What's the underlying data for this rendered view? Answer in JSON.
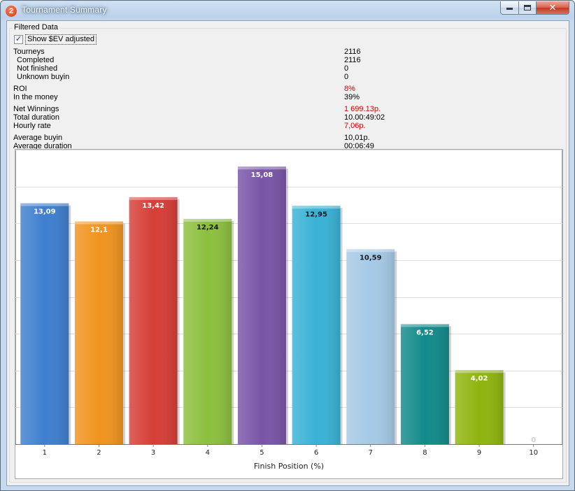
{
  "window": {
    "title": "Tournament Summary",
    "app_icon_glyph": "2",
    "buttons": {
      "minimize": "minimize-icon",
      "maximize": "maximize-icon",
      "close": "close-icon"
    }
  },
  "group": {
    "label": "Filtered Data"
  },
  "checkbox": {
    "label": "Show $EV adjusted",
    "checked": true
  },
  "stats": [
    {
      "label": "Tourneys",
      "value": "2116",
      "sub": false,
      "red": false
    },
    {
      "label": "Completed",
      "value": "2116",
      "sub": true,
      "red": false
    },
    {
      "label": "Not finished",
      "value": "0",
      "sub": true,
      "red": false
    },
    {
      "label": "Unknown buyin",
      "value": "0",
      "sub": true,
      "red": false
    },
    {
      "label": "ROI",
      "value": "8%",
      "sub": false,
      "red": true
    },
    {
      "label": "In the money",
      "value": "39%",
      "sub": false,
      "red": false
    },
    {
      "label": "Net Winnings",
      "value": "1 699.13р.",
      "sub": false,
      "red": true
    },
    {
      "label": "Total duration",
      "value": "10.00:49:02",
      "sub": false,
      "red": false
    },
    {
      "label": "Hourly rate",
      "value": "7,06р.",
      "sub": false,
      "red": true
    },
    {
      "label": "Average buyin",
      "value": "10,01р.",
      "sub": false,
      "red": false
    },
    {
      "label": "Average duration",
      "value": "00:06:49",
      "sub": false,
      "red": false
    }
  ],
  "chart_data": {
    "type": "bar",
    "xlabel": "Finish Position (%)",
    "ylabel": "",
    "categories": [
      "1",
      "2",
      "3",
      "4",
      "5",
      "6",
      "7",
      "8",
      "9",
      "10"
    ],
    "values": [
      13.09,
      12.1,
      13.42,
      12.24,
      15.08,
      12.95,
      10.59,
      6.52,
      4.02,
      0
    ],
    "data_labels": [
      "13,09",
      "12,1",
      "13,42",
      "12,24",
      "15,08",
      "12,95",
      "10,59",
      "6,52",
      "4,02",
      "0"
    ],
    "colors": [
      "#3f7fcf",
      "#f0941f",
      "#d63e37",
      "#8cbf3e",
      "#7a55a8",
      "#39b2d6",
      "#a5c9e6",
      "#138a8a",
      "#8fb40e",
      "#cccccc"
    ],
    "label_dark": [
      false,
      false,
      false,
      true,
      false,
      true,
      true,
      false,
      false,
      false
    ],
    "ylim": [
      0,
      16
    ],
    "grid": true
  }
}
